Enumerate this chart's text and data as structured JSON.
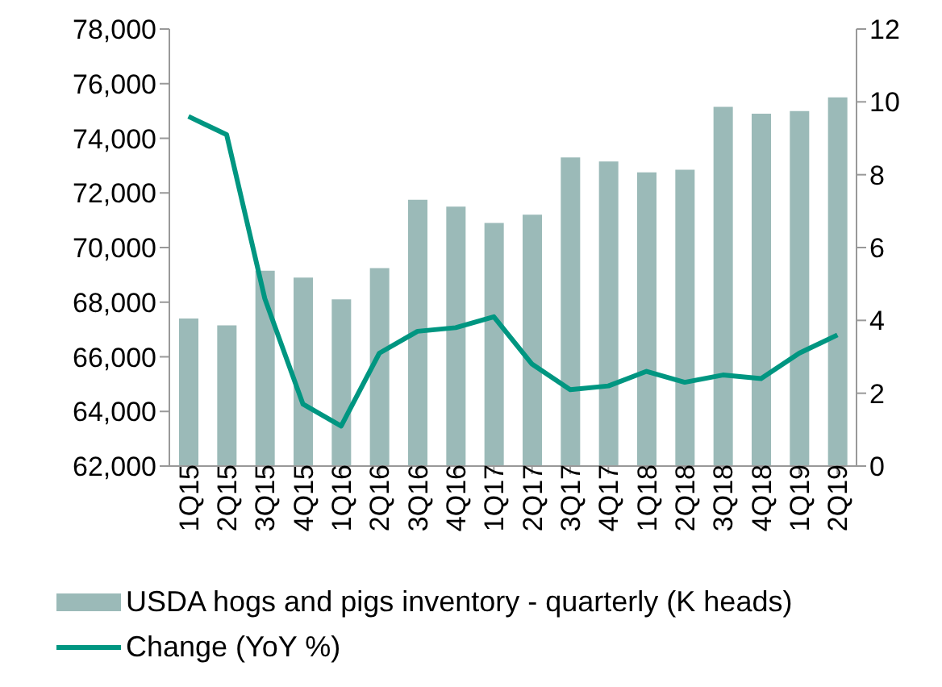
{
  "chart_data": {
    "type": "bar",
    "categories": [
      "1Q15",
      "2Q15",
      "3Q15",
      "4Q15",
      "1Q16",
      "2Q16",
      "3Q16",
      "4Q16",
      "1Q17",
      "2Q17",
      "3Q17",
      "4Q17",
      "1Q18",
      "2Q18",
      "3Q18",
      "4Q18",
      "1Q19",
      "2Q19"
    ],
    "series": [
      {
        "name": "USDA hogs and pigs inventory - quarterly (K heads)",
        "color": "#9bbab8",
        "values": [
          67400,
          67150,
          69150,
          68900,
          68100,
          69250,
          71750,
          71500,
          70900,
          71200,
          73300,
          73150,
          72750,
          72850,
          75150,
          74900,
          75000,
          75500
        ]
      },
      {
        "name": "Change (YoY %)",
        "type": "line",
        "axis": "y2",
        "color": "#009681",
        "values": [
          9.6,
          9.1,
          4.6,
          1.7,
          1.1,
          3.1,
          3.7,
          3.8,
          4.1,
          2.8,
          2.1,
          2.2,
          2.6,
          2.3,
          2.5,
          2.4,
          3.1,
          3.6
        ]
      }
    ],
    "ylim": [
      62000,
      78000
    ],
    "yticks": [
      {
        "value": 62000,
        "label": "62,000"
      },
      {
        "value": 64000,
        "label": "64,000"
      },
      {
        "value": 66000,
        "label": "66,000"
      },
      {
        "value": 68000,
        "label": "68,000"
      },
      {
        "value": 70000,
        "label": "70,000"
      },
      {
        "value": 72000,
        "label": "72,000"
      },
      {
        "value": 74000,
        "label": "74,000"
      },
      {
        "value": 76000,
        "label": "76,000"
      },
      {
        "value": 78000,
        "label": "78,000"
      }
    ],
    "y2lim": [
      0,
      12
    ],
    "y2ticks": [
      0,
      2,
      4,
      6,
      8,
      10,
      12
    ],
    "legend": "bottom",
    "grid": false,
    "marker": "none"
  }
}
